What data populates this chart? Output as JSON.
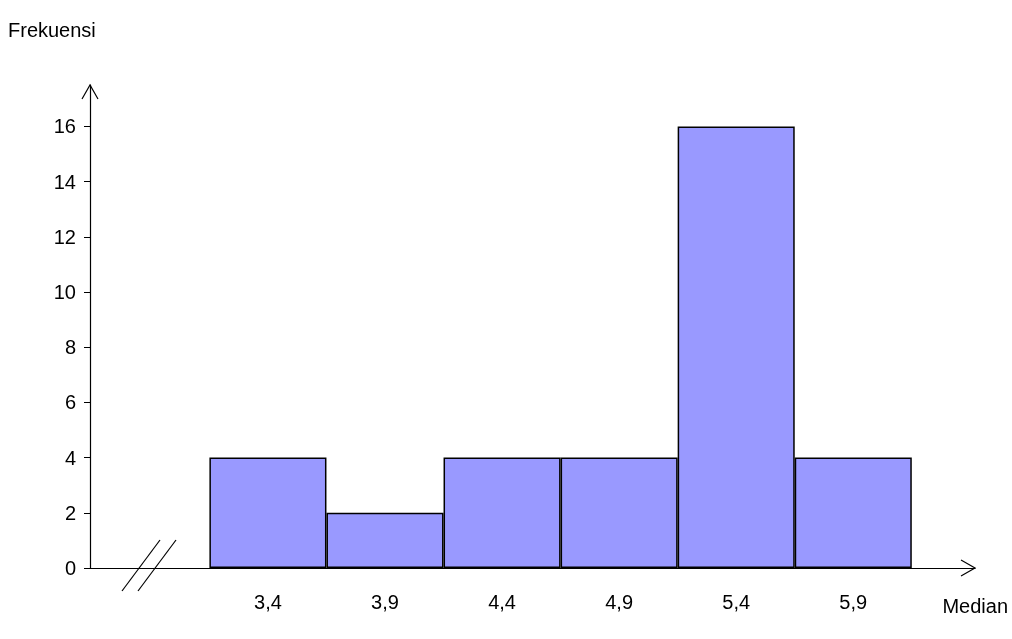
{
  "chart_data": {
    "type": "bar",
    "xlabel": "Median",
    "ylabel": "Frekuensi",
    "categories": [
      "3,4",
      "3,9",
      "4,4",
      "4,9",
      "5,4",
      "5,9"
    ],
    "values": [
      4,
      2,
      4,
      4,
      16,
      4
    ],
    "color": "#9999ff",
    "ylim": [
      0,
      17.5
    ],
    "yticks": [
      0,
      2,
      4,
      6,
      8,
      10,
      12,
      14,
      16
    ],
    "grid": false
  }
}
